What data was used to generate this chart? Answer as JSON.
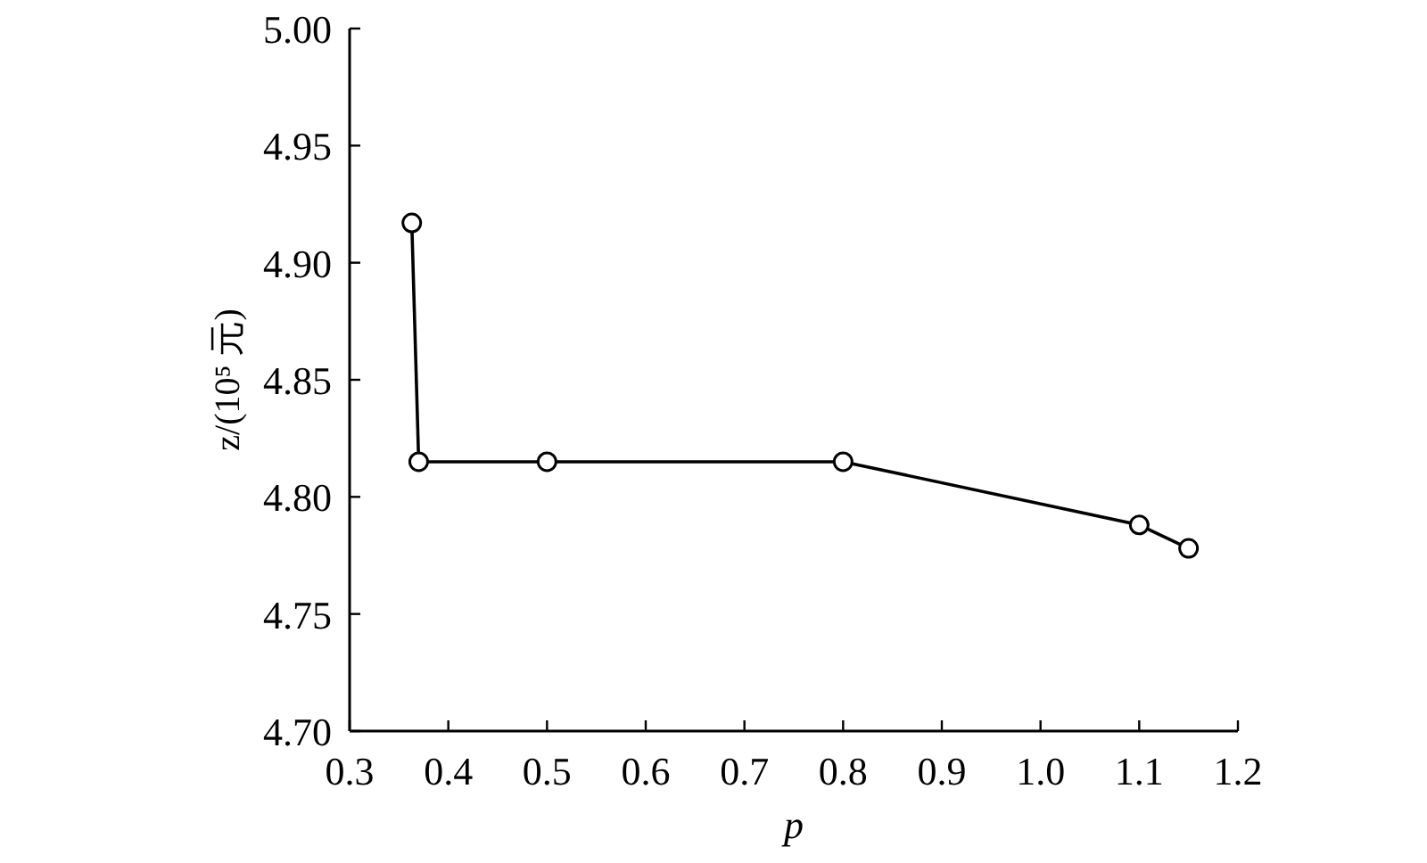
{
  "chart_data": {
    "type": "line",
    "xlabel": "p",
    "ylabel": "z/(10⁵ 元)",
    "x": [
      0.363,
      0.37,
      0.5,
      0.8,
      1.1,
      1.15
    ],
    "series": [
      {
        "color": "#000000",
        "values": [
          4.917,
          4.815,
          4.815,
          4.815,
          4.788,
          4.778
        ]
      }
    ],
    "marker": "circle",
    "line_style": "solid",
    "grid": false,
    "xlim": [
      0.3,
      1.2
    ],
    "xticks": [
      0.3,
      0.4,
      0.5,
      0.6,
      0.7,
      0.8,
      0.9,
      {
        "value": 1,
        "label": "1.0"
      },
      1.1,
      1.2
    ],
    "ylim": [
      4.7,
      5.0
    ],
    "yticks": [
      {
        "value": 4.7,
        "label": "4.70"
      },
      4.75,
      {
        "value": 4.8,
        "label": "4.80"
      },
      4.85,
      {
        "value": 4.9,
        "label": "4.90"
      },
      4.95,
      {
        "value": 5,
        "label": "5.00"
      }
    ]
  }
}
